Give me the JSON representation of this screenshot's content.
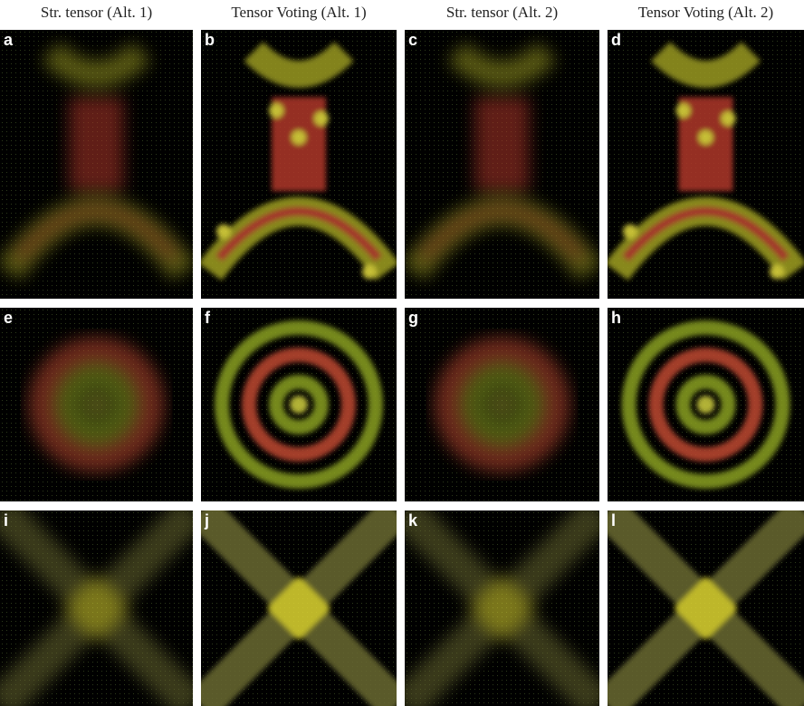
{
  "headers": [
    "Str. tensor (Alt. 1)",
    "Tensor Voting (Alt. 1)",
    "Str. tensor (Alt. 2)",
    "Tensor Voting (Alt. 2)"
  ],
  "panels": [
    "a",
    "b",
    "c",
    "d",
    "e",
    "f",
    "g",
    "h",
    "i",
    "j",
    "k",
    "l"
  ]
}
